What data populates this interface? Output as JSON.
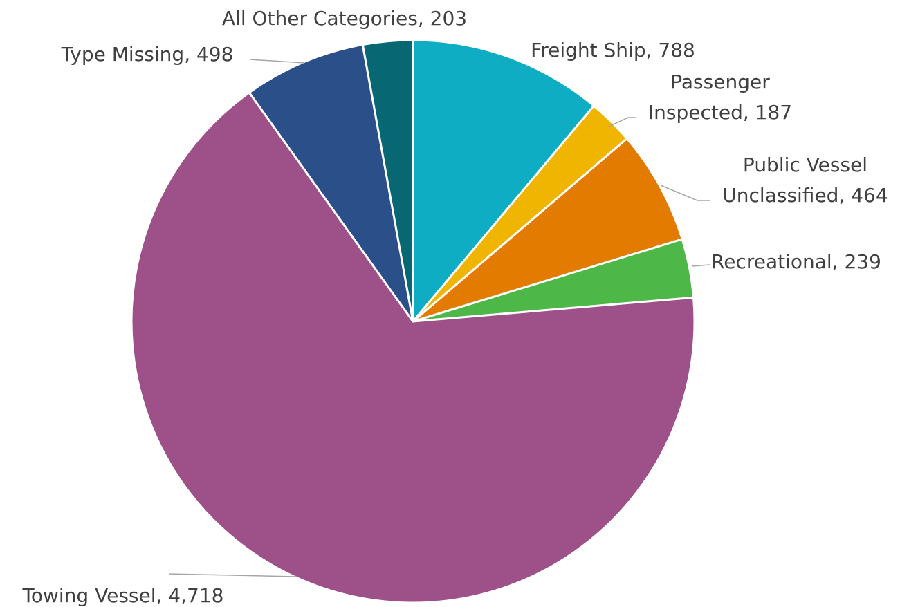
{
  "chart_data": {
    "type": "pie",
    "title": "",
    "slices": [
      {
        "label": "Freight Ship",
        "value": 788,
        "color": "#0fadc3",
        "label_text": [
          "Freight Ship, 788"
        ]
      },
      {
        "label": "Passenger Inspected",
        "value": 187,
        "color": "#efb500",
        "label_text": [
          "Passenger",
          "Inspected, 187"
        ]
      },
      {
        "label": "Public Vessel Unclassified",
        "value": 464,
        "color": "#e37b00",
        "label_text": [
          "Public Vessel",
          "Unclassified, 464"
        ]
      },
      {
        "label": "Recreational",
        "value": 239,
        "color": "#4db848",
        "label_text": [
          "Recreational, 239"
        ]
      },
      {
        "label": "Towing Vessel",
        "value": 4718,
        "color": "#9e5088",
        "label_text": [
          "Towing Vessel, 4,718"
        ]
      },
      {
        "label": "Type Missing",
        "value": 498,
        "color": "#2b4f88",
        "label_text": [
          "Type Missing, 498"
        ]
      },
      {
        "label": "All Other Categories",
        "value": 203,
        "color": "#076874",
        "label_text": [
          "All Other Categories, 203"
        ]
      }
    ]
  }
}
